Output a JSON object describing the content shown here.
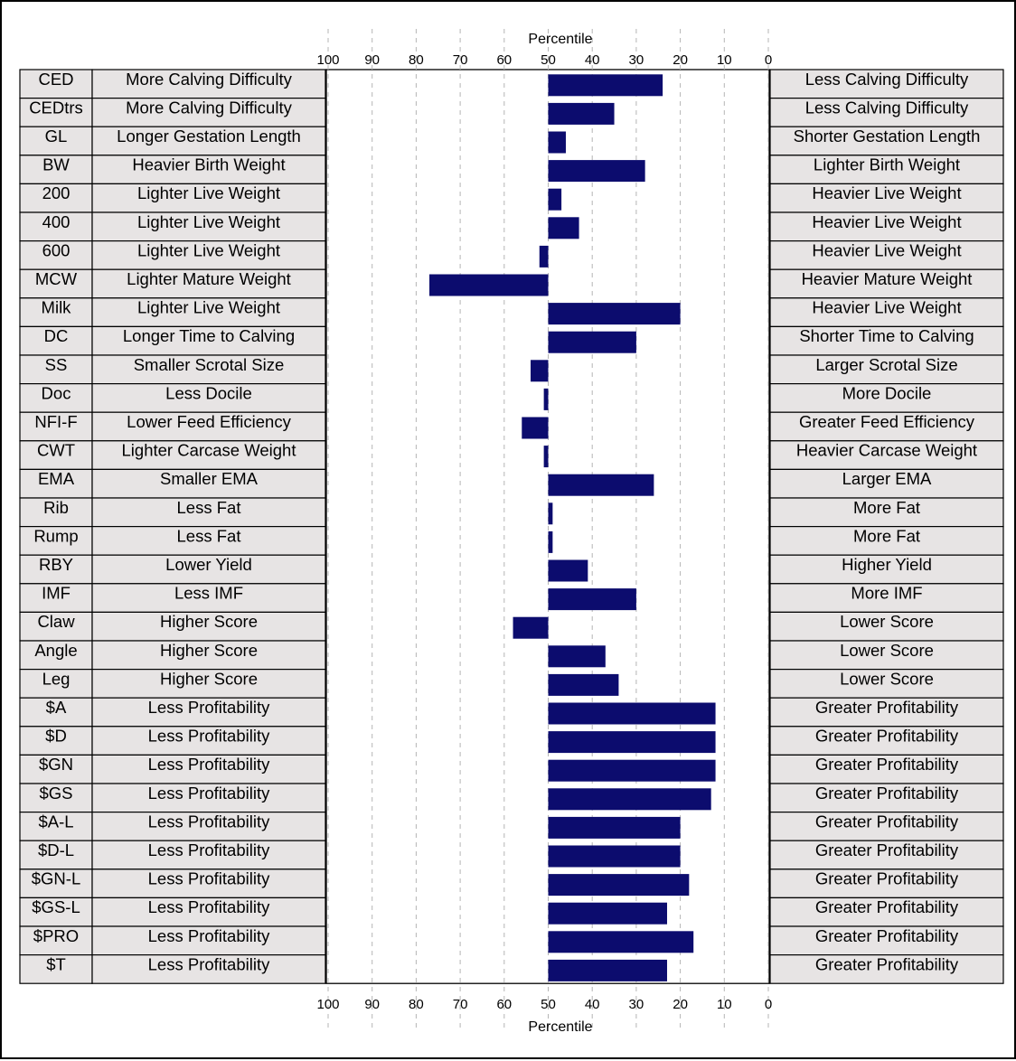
{
  "chart_data": {
    "type": "bar",
    "orientation": "horizontal",
    "axis_title": "Percentile",
    "x_ticks": [
      "100",
      "90",
      "80",
      "70",
      "60",
      "50",
      "40",
      "30",
      "20",
      "10",
      "0"
    ],
    "xlim": [
      100,
      0
    ],
    "baseline": 50,
    "grid": "vertical-dashed",
    "bar_color": "#0c0c6e",
    "cell_fill": "#e7e4e4",
    "rows": [
      {
        "trait": "CED",
        "left": "More Calving Difficulty",
        "right": "Less Calving Difficulty",
        "value": 24
      },
      {
        "trait": "CEDtrs",
        "left": "More Calving Difficulty",
        "right": "Less Calving Difficulty",
        "value": 35
      },
      {
        "trait": "GL",
        "left": "Longer Gestation Length",
        "right": "Shorter Gestation Length",
        "value": 46
      },
      {
        "trait": "BW",
        "left": "Heavier Birth Weight",
        "right": "Lighter Birth Weight",
        "value": 28
      },
      {
        "trait": "200",
        "left": "Lighter Live Weight",
        "right": "Heavier Live Weight",
        "value": 47
      },
      {
        "trait": "400",
        "left": "Lighter Live Weight",
        "right": "Heavier Live Weight",
        "value": 43
      },
      {
        "trait": "600",
        "left": "Lighter Live Weight",
        "right": "Heavier Live Weight",
        "value": 52
      },
      {
        "trait": "MCW",
        "left": "Lighter Mature Weight",
        "right": "Heavier Mature Weight",
        "value": 77
      },
      {
        "trait": "Milk",
        "left": "Lighter Live Weight",
        "right": "Heavier Live Weight",
        "value": 20
      },
      {
        "trait": "DC",
        "left": "Longer Time to Calving",
        "right": "Shorter Time to Calving",
        "value": 30
      },
      {
        "trait": "SS",
        "left": "Smaller Scrotal Size",
        "right": "Larger Scrotal Size",
        "value": 54
      },
      {
        "trait": "Doc",
        "left": "Less Docile",
        "right": "More Docile",
        "value": 51
      },
      {
        "trait": "NFI-F",
        "left": "Lower Feed Efficiency",
        "right": "Greater Feed Efficiency",
        "value": 56
      },
      {
        "trait": "CWT",
        "left": "Lighter Carcase Weight",
        "right": "Heavier Carcase Weight",
        "value": 51
      },
      {
        "trait": "EMA",
        "left": "Smaller EMA",
        "right": "Larger EMA",
        "value": 26
      },
      {
        "trait": "Rib",
        "left": "Less Fat",
        "right": "More Fat",
        "value": 49
      },
      {
        "trait": "Rump",
        "left": "Less Fat",
        "right": "More Fat",
        "value": 49
      },
      {
        "trait": "RBY",
        "left": "Lower Yield",
        "right": "Higher Yield",
        "value": 41
      },
      {
        "trait": "IMF",
        "left": "Less IMF",
        "right": "More IMF",
        "value": 30
      },
      {
        "trait": "Claw",
        "left": "Higher Score",
        "right": "Lower Score",
        "value": 58
      },
      {
        "trait": "Angle",
        "left": "Higher Score",
        "right": "Lower Score",
        "value": 37
      },
      {
        "trait": "Leg",
        "left": "Higher Score",
        "right": "Lower Score",
        "value": 34
      },
      {
        "trait": "$A",
        "left": "Less Profitability",
        "right": "Greater Profitability",
        "value": 12
      },
      {
        "trait": "$D",
        "left": "Less Profitability",
        "right": "Greater Profitability",
        "value": 12
      },
      {
        "trait": "$GN",
        "left": "Less Profitability",
        "right": "Greater Profitability",
        "value": 12
      },
      {
        "trait": "$GS",
        "left": "Less Profitability",
        "right": "Greater Profitability",
        "value": 13
      },
      {
        "trait": "$A-L",
        "left": "Less Profitability",
        "right": "Greater Profitability",
        "value": 20
      },
      {
        "trait": "$D-L",
        "left": "Less Profitability",
        "right": "Greater Profitability",
        "value": 20
      },
      {
        "trait": "$GN-L",
        "left": "Less Profitability",
        "right": "Greater Profitability",
        "value": 18
      },
      {
        "trait": "$GS-L",
        "left": "Less Profitability",
        "right": "Greater Profitability",
        "value": 23
      },
      {
        "trait": "$PRO",
        "left": "Less Profitability",
        "right": "Greater Profitability",
        "value": 17
      },
      {
        "trait": "$T",
        "left": "Less Profitability",
        "right": "Greater Profitability",
        "value": 23
      }
    ]
  }
}
